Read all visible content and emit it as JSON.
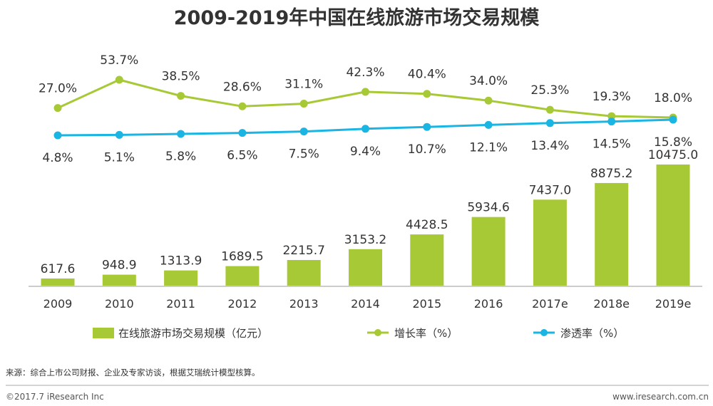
{
  "chart_data": {
    "type": "bar",
    "title": "2009-2019年中国在线旅游市场交易规模",
    "categories": [
      "2009",
      "2010",
      "2011",
      "2012",
      "2013",
      "2014",
      "2015",
      "2016",
      "2017e",
      "2018e",
      "2019e"
    ],
    "series": [
      {
        "name": "在线旅游市场交易规模（亿元）",
        "type": "bar",
        "values": [
          617.6,
          948.9,
          1313.9,
          1689.5,
          2215.7,
          3153.2,
          4428.5,
          5934.6,
          7437.0,
          8875.2,
          10475.0
        ],
        "labels": [
          "617.6",
          "948.9",
          "1313.9",
          "1689.5",
          "2215.7",
          "3153.2",
          "4428.5",
          "5934.6",
          "7437.0",
          "8875.2",
          "10475.0"
        ]
      },
      {
        "name": "增长率（%）",
        "type": "line",
        "values": [
          27.0,
          53.7,
          38.5,
          28.6,
          31.1,
          42.3,
          40.4,
          34.0,
          25.3,
          19.3,
          18.0
        ],
        "labels": [
          "27.0%",
          "53.7%",
          "38.5%",
          "28.6%",
          "31.1%",
          "42.3%",
          "40.4%",
          "34.0%",
          "25.3%",
          "19.3%",
          "18.0%"
        ]
      },
      {
        "name": "渗透率（%）",
        "type": "line",
        "values": [
          4.8,
          5.1,
          5.8,
          6.5,
          7.5,
          9.4,
          10.7,
          12.1,
          13.4,
          14.5,
          15.8
        ],
        "labels": [
          "4.8%",
          "5.1%",
          "5.8%",
          "6.5%",
          "7.5%",
          "9.4%",
          "10.7%",
          "12.1%",
          "13.4%",
          "14.5%",
          "15.8%"
        ]
      }
    ],
    "ylim_bar": [
      0,
      11000
    ],
    "legend_position": "bottom",
    "grid": false
  },
  "colors": {
    "bar": "#a8c936",
    "growth_line": "#a8c936",
    "penetration_line": "#1ab5e3",
    "axis": "#999999",
    "text": "#333333"
  },
  "source_note": "来源：综合上市公司财报、企业及专家访谈，根据艾瑞统计模型核算。",
  "footer": {
    "copyright": "©2017.7 iResearch Inc",
    "website": "www.iresearch.com.cn"
  }
}
